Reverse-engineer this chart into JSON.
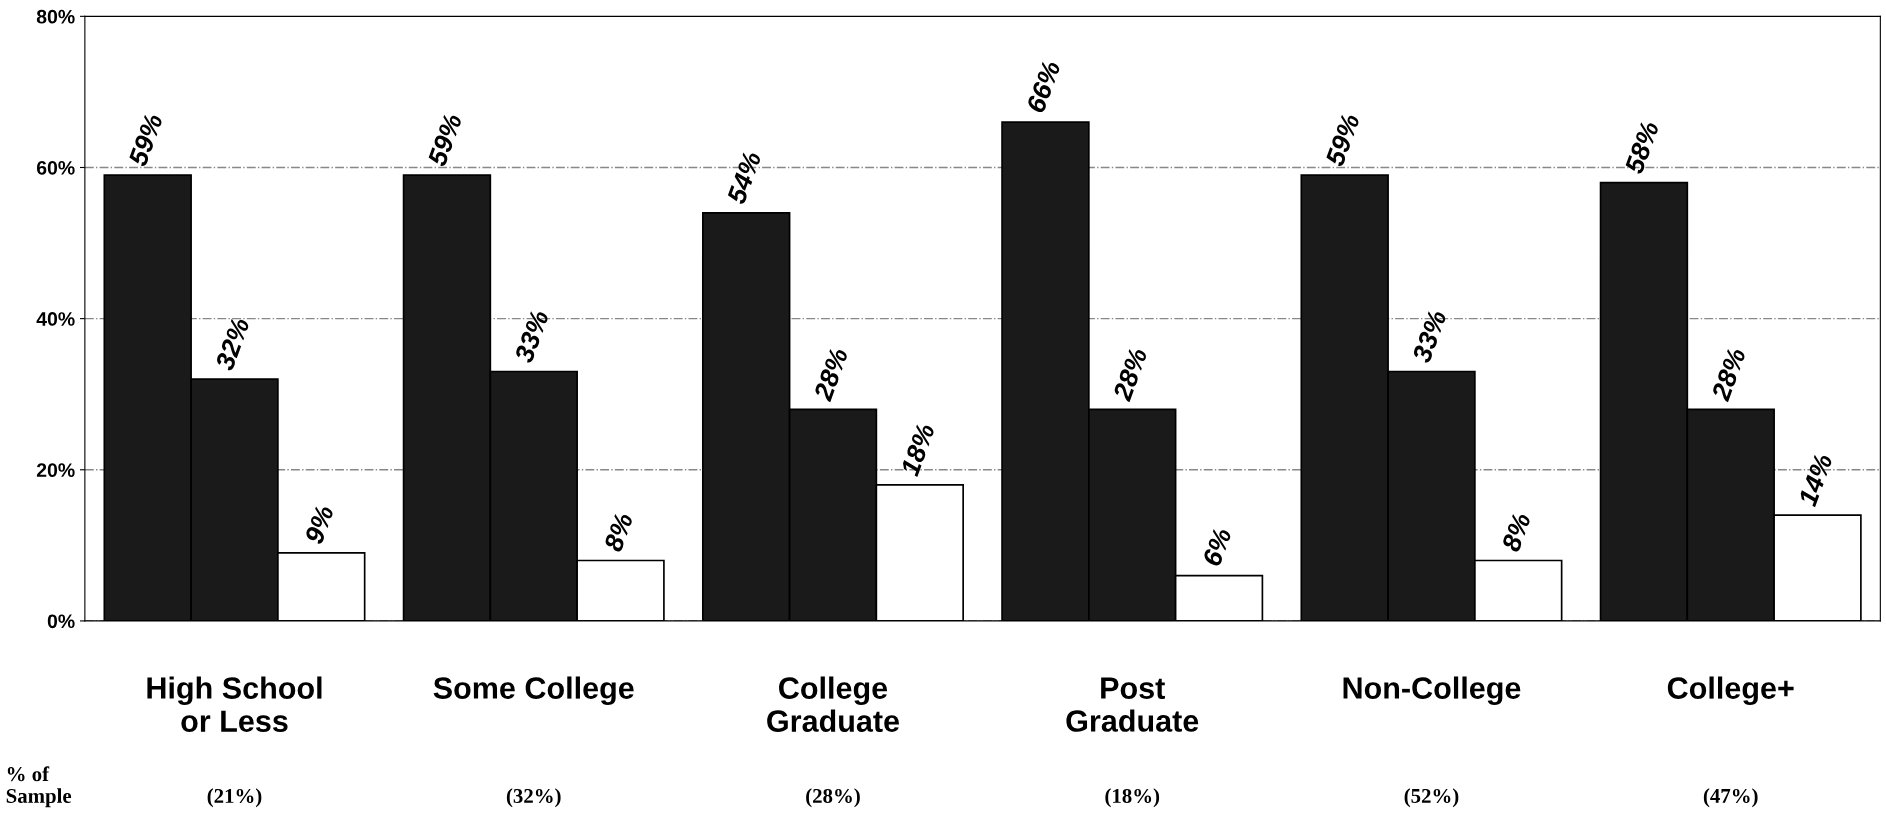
{
  "chart_data": {
    "type": "bar",
    "categories": [
      "High School\nor Less",
      "Some College",
      "College\nGraduate",
      "Post\nGraduate",
      "Non-College",
      "College+"
    ],
    "series": [
      {
        "color": "#1a1a1a",
        "values": [
          59,
          59,
          54,
          66,
          59,
          58
        ],
        "value_labels": [
          "59%",
          "59%",
          "54%",
          "66%",
          "59%",
          "58%"
        ]
      },
      {
        "color": "#1a1a1a",
        "values": [
          32,
          33,
          28,
          28,
          33,
          28
        ],
        "value_labels": [
          "32%",
          "33%",
          "28%",
          "28%",
          "33%",
          "28%"
        ]
      },
      {
        "color": "#ffffff",
        "values": [
          9,
          8,
          18,
          6,
          8,
          14
        ],
        "value_labels": [
          "9%",
          "8%",
          "18%",
          "6%",
          "8%",
          "14%"
        ]
      }
    ],
    "ylim": [
      0,
      80
    ],
    "yticks": [
      {
        "value": 0,
        "label": "0%"
      },
      {
        "value": 20,
        "label": "20%"
      },
      {
        "value": 40,
        "label": "40%"
      },
      {
        "value": 60,
        "label": "60%"
      },
      {
        "value": 80,
        "label": "80%"
      }
    ],
    "grid": "y",
    "legend": false,
    "annotations": [
      "% of\nSample",
      "(21%)",
      "(32%)",
      "(28%)",
      "(18%)",
      "(52%)",
      "(47%)"
    ]
  }
}
